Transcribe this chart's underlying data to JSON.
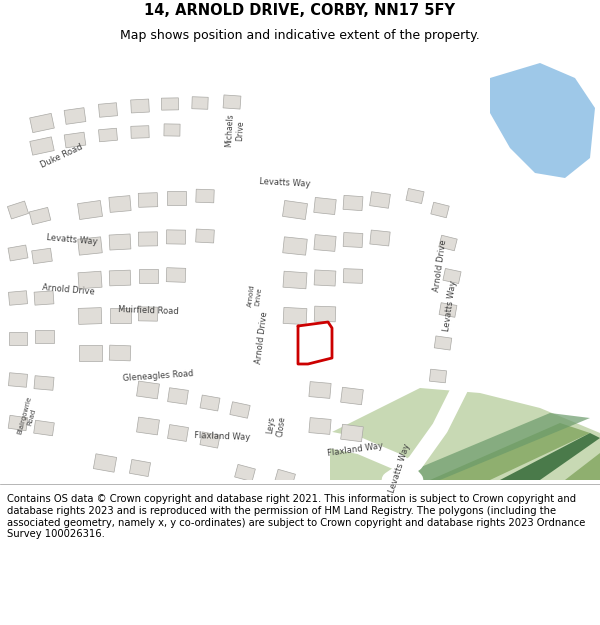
{
  "title_line1": "14, ARNOLD DRIVE, CORBY, NN17 5FY",
  "title_line2": "Map shows position and indicative extent of the property.",
  "footer_text": "Contains OS data © Crown copyright and database right 2021. This information is subject to Crown copyright and database rights 2023 and is reproduced with the permission of HM Land Registry. The polygons (including the associated geometry, namely x, y co-ordinates) are subject to Crown copyright and database rights 2023 Ordnance Survey 100026316.",
  "title_fontsize": 10.5,
  "subtitle_fontsize": 9,
  "footer_fontsize": 7.2,
  "fig_width": 6.0,
  "fig_height": 6.25,
  "dpi": 100,
  "map_bg": "#f5f3ef",
  "title_bg": "#ffffff",
  "footer_bg": "#ffffff",
  "road_color": "#ffffff",
  "road_lw": 10,
  "building_face": "#e0ddd8",
  "building_edge": "#aaa9a5",
  "green_light": "#c8d9b4",
  "green_mid": "#8faf6f",
  "green_dark": "#4a7a4a",
  "blue_water": "#9ec8e8",
  "red_plot": "#cc0000",
  "label_color": "#404040",
  "label_size": 5.5
}
